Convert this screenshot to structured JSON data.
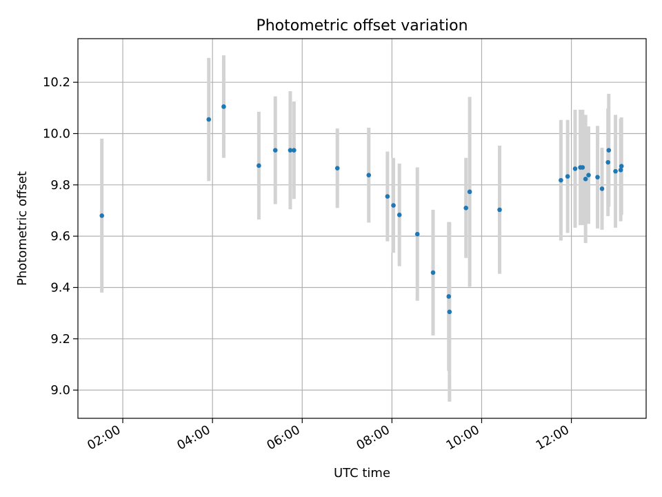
{
  "chart_data": {
    "type": "scatter",
    "title": "Photometric offset variation",
    "xlabel": "UTC time",
    "ylabel": "Photometric offset",
    "x_ticks": [
      "02:00",
      "04:00",
      "06:00",
      "08:00",
      "10:00",
      "12:00"
    ],
    "y_ticks": [
      "9.0",
      "9.2",
      "9.4",
      "9.6",
      "9.8",
      "10.0",
      "10.2"
    ],
    "grid": true,
    "colors": {
      "point": "#1f77b4",
      "errorbar": "#d3d3d3",
      "grid": "#b0b0b0"
    },
    "xlim": [
      "01:00",
      "13:40"
    ],
    "ylim": [
      8.89,
      10.37
    ],
    "series": [
      {
        "x": [
          "01:32",
          "03:55",
          "04:15",
          "05:02",
          "05:24",
          "05:44",
          "05:49",
          "06:47",
          "07:29",
          "07:54",
          "08:02",
          "08:10",
          "08:34",
          "08:55",
          "09:16",
          "09:17",
          "09:39",
          "09:44",
          "10:24",
          "11:46",
          "11:55",
          "12:05",
          "12:12",
          "12:15",
          "12:19",
          "12:23",
          "12:35",
          "12:41",
          "12:49",
          "12:50",
          "12:59",
          "13:06",
          "13:07"
        ],
        "y": [
          9.68,
          10.055,
          10.105,
          9.875,
          9.935,
          9.935,
          9.935,
          9.865,
          9.838,
          9.755,
          9.72,
          9.683,
          9.608,
          9.458,
          9.365,
          9.305,
          9.71,
          9.773,
          9.703,
          9.818,
          9.833,
          9.863,
          9.868,
          9.868,
          9.823,
          9.838,
          9.83,
          9.785,
          9.888,
          9.935,
          9.853,
          9.858,
          9.873
        ],
        "yerr": [
          0.3,
          0.24,
          0.2,
          0.21,
          0.21,
          0.23,
          0.19,
          0.155,
          0.185,
          0.175,
          0.185,
          0.2,
          0.26,
          0.245,
          0.29,
          0.35,
          0.195,
          0.37,
          0.25,
          0.235,
          0.22,
          0.23,
          0.225,
          0.225,
          0.25,
          0.19,
          0.2,
          0.16,
          0.21,
          0.22,
          0.22,
          0.2,
          0.19
        ]
      }
    ]
  }
}
